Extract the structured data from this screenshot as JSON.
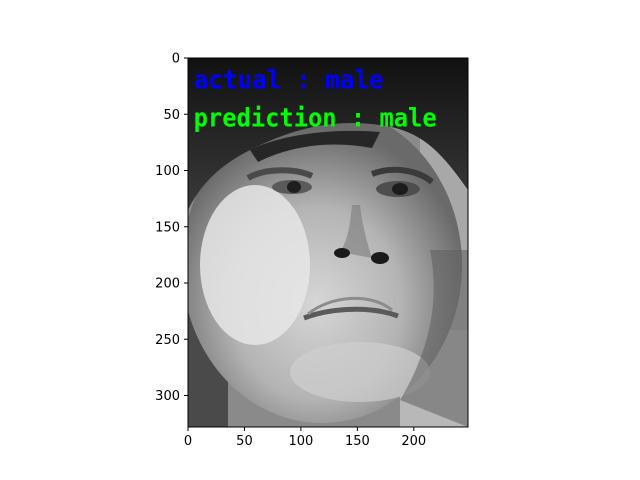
{
  "chart_data": {
    "type": "image",
    "image_size": {
      "width": 248,
      "height": 328
    },
    "xlim": [
      0,
      248
    ],
    "ylim": [
      328,
      0
    ],
    "x_ticks": [
      0,
      50,
      100,
      150,
      200
    ],
    "y_ticks": [
      0,
      50,
      100,
      150,
      200,
      250,
      300
    ],
    "overlays": [
      {
        "text": "actual : male",
        "color": "#0000ff",
        "x": 5,
        "y": 27
      },
      {
        "text": "prediction : male",
        "color": "#00ff00",
        "x": 5,
        "y": 61
      }
    ],
    "image_content": "grayscale pixelated face"
  }
}
